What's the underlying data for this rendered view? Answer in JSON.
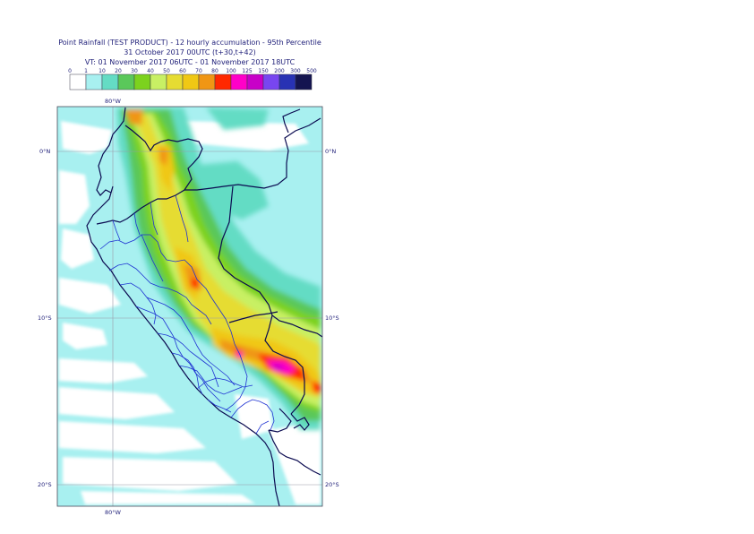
{
  "header": {
    "title_line1": "Point Rainfall (TEST PRODUCT) - 12 hourly accumulation - 95th Percentile",
    "title_line2": "31 October 2017 00UTC (t+30,t+42)",
    "title_line3": "VT: 01 November 2017 06UTC - 01 November 2017 18UTC"
  },
  "legend": {
    "boundaries": [
      "0",
      "1",
      "10",
      "20",
      "30",
      "40",
      "50",
      "60",
      "70",
      "80",
      "100",
      "125",
      "150",
      "200",
      "300",
      "500"
    ],
    "colors": [
      "#ffffff",
      "#a8f0f0",
      "#64dcc4",
      "#5ac85a",
      "#7cd21e",
      "#c8f064",
      "#e6dc32",
      "#f0c814",
      "#f09614",
      "#ff2800",
      "#ff00c8",
      "#c800c8",
      "#7846f0",
      "#2832b4",
      "#141450"
    ]
  },
  "map": {
    "lat_labels": [
      "0°N",
      "10°S",
      "20°S"
    ],
    "lon_label_top": "80°W",
    "lon_label_bottom": "80°W"
  }
}
